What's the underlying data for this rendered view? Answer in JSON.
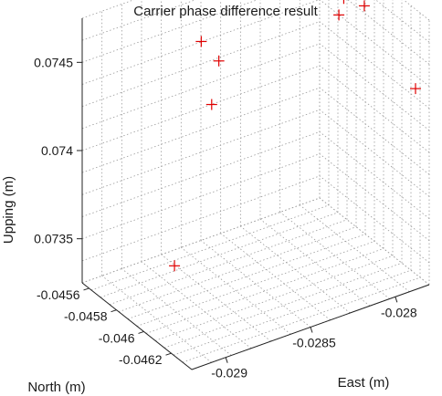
{
  "chart_data": {
    "type": "scatter",
    "title": "Carrier phase difference result",
    "xlabel": "East (m)",
    "ylabel": "North (m)",
    "zlabel": "Upping (m)",
    "xlim": [
      -0.0292,
      -0.0278
    ],
    "ylim": [
      -0.04635,
      -0.04555
    ],
    "zlim": [
      0.07325,
      0.07475
    ],
    "x_ticks": [
      -0.029,
      -0.0285,
      -0.028
    ],
    "x_tick_labels": [
      "-0.029",
      "-0.0285",
      "-0.028"
    ],
    "y_ticks": [
      -0.0456,
      -0.0458,
      -0.046,
      -0.0462
    ],
    "y_tick_labels": [
      "-0.0456",
      "-0.0458",
      "-0.046",
      "-0.0462"
    ],
    "z_ticks": [
      0.0735,
      0.074,
      0.0745
    ],
    "z_tick_labels": [
      "0.0735",
      "0.074",
      "0.0745"
    ],
    "grid": true,
    "marker": "+",
    "marker_color": "#e00000",
    "points": [
      {
        "x": -0.02805,
        "y": -0.046,
        "z": 0.07465
      },
      {
        "x": -0.0279,
        "y": -0.046,
        "z": 0.07465
      },
      {
        "x": -0.0279,
        "y": -0.04585,
        "z": 0.0746
      },
      {
        "x": -0.0278,
        "y": -0.04625,
        "z": 0.0743
      },
      {
        "x": -0.0287,
        "y": -0.0458,
        "z": 0.0746
      },
      {
        "x": -0.029,
        "y": -0.0463,
        "z": 0.0749
      },
      {
        "x": -0.0288,
        "y": -0.046,
        "z": 0.0744
      },
      {
        "x": -0.0291,
        "y": -0.0461,
        "z": 0.07365
      }
    ]
  }
}
